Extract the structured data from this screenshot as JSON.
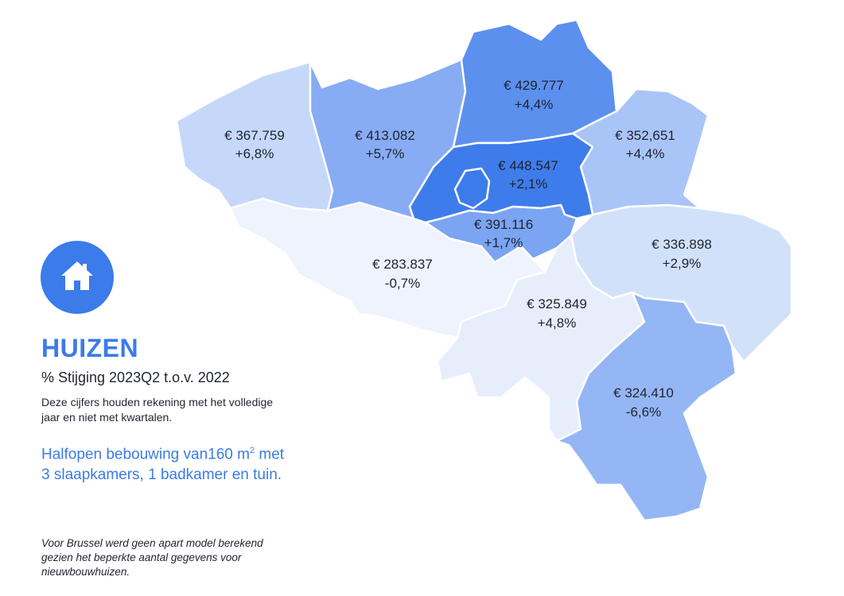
{
  "legend": {
    "title": "HUIZEN",
    "subtitle": "% Stijging 2023Q2 t.o.v. 2022",
    "note": "Deze cijfers houden rekening met het volledige jaar en niet met kwartalen.",
    "description_main": "Halfopen bebouwing van160 m",
    "description_sup": "2",
    "description_rest": " met 3 slaapkamers, 1 badkamer en tuin.",
    "footnote": "Voor Brussel werd geen apart model berekend gezien het beperkte aantal gegevens voor nieuwbouwhuizen."
  },
  "icon": {
    "name": "house-icon",
    "color": "#3b7bea"
  },
  "regions": [
    {
      "id": "west-vlaanderen",
      "price": "€ 367.759",
      "change": "+6,8%",
      "color": "#c5d8f9"
    },
    {
      "id": "oost-vlaanderen",
      "price": "€ 413.082",
      "change": "+5,7%",
      "color": "#87acf3"
    },
    {
      "id": "antwerpen",
      "price": "€ 429.777",
      "change": "+4,4%",
      "color": "#5b90ef"
    },
    {
      "id": "limburg",
      "price": "€ 352,651",
      "change": "+4,4%",
      "color": "#a9c4f7"
    },
    {
      "id": "vlaams-brabant",
      "price": "€ 448.547",
      "change": "+2,1%",
      "color": "#3f7ceb"
    },
    {
      "id": "brussel",
      "price": "",
      "change": "",
      "color": "#3b7bea"
    },
    {
      "id": "waals-brabant",
      "price": "€ 391.116",
      "change": "+1,7%",
      "color": "#7ba4f2"
    },
    {
      "id": "henegouwen",
      "price": "€ 283.837",
      "change": "-0,7%",
      "color": "#eef3fd"
    },
    {
      "id": "namen",
      "price": "€ 325.849",
      "change": "+4,8%",
      "color": "#e6eefc"
    },
    {
      "id": "luik",
      "price": "€ 336.898",
      "change": "+2,9%",
      "color": "#d2e1fa"
    },
    {
      "id": "luxemburg",
      "price": "€ 324.410",
      "change": "-6,6%",
      "color": "#94b6f4"
    }
  ]
}
